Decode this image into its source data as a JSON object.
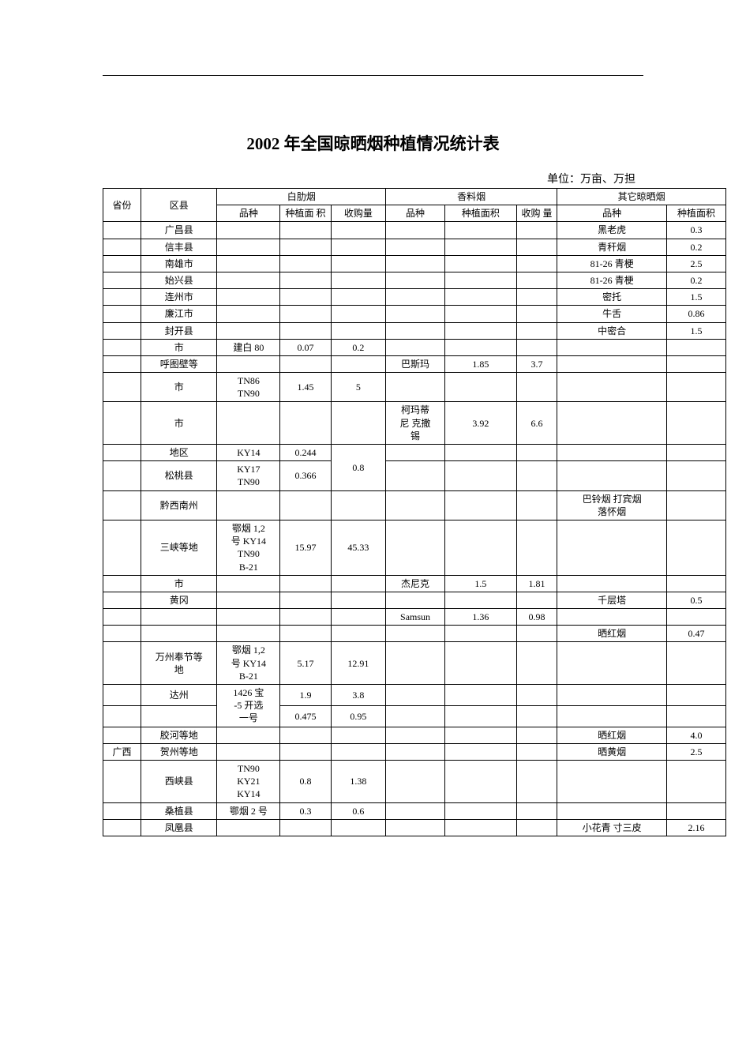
{
  "title": "2002 年全国晾晒烟种植情况统计表",
  "unit_label": "单位：万亩、万担",
  "headers": {
    "province": "省份",
    "county": "区县",
    "group1": "白肋烟",
    "group2": "香料烟",
    "group3": "其它晾晒烟",
    "variety": "品种",
    "area": "种植面积",
    "area_wrap": "种植面\n积",
    "purchase": "收购量",
    "purchase_wrap": "收购\n量"
  },
  "rows": [
    {
      "prov": "",
      "county": "广昌县",
      "v1": "",
      "a1": "",
      "p1": "",
      "v2": "",
      "a2": "",
      "p2": "",
      "v3": "黑老虎",
      "a3": "0.3"
    },
    {
      "prov": "",
      "county": "信丰县",
      "v1": "",
      "a1": "",
      "p1": "",
      "v2": "",
      "a2": "",
      "p2": "",
      "v3": "青秆烟",
      "a3": "0.2"
    },
    {
      "prov": "",
      "county": "南雄市",
      "v1": "",
      "a1": "",
      "p1": "",
      "v2": "",
      "a2": "",
      "p2": "",
      "v3": "81-26 青梗",
      "a3": "2.5"
    },
    {
      "prov": "",
      "county": "始兴县",
      "v1": "",
      "a1": "",
      "p1": "",
      "v2": "",
      "a2": "",
      "p2": "",
      "v3": "81-26 青梗",
      "a3": "0.2"
    },
    {
      "prov": "",
      "county": "连州市",
      "v1": "",
      "a1": "",
      "p1": "",
      "v2": "",
      "a2": "",
      "p2": "",
      "v3": "密托",
      "a3": "1.5"
    },
    {
      "prov": "",
      "county": "廉江市",
      "v1": "",
      "a1": "",
      "p1": "",
      "v2": "",
      "a2": "",
      "p2": "",
      "v3": "牛舌",
      "a3": "0.86"
    },
    {
      "prov": "",
      "county": "封开县",
      "v1": "",
      "a1": "",
      "p1": "",
      "v2": "",
      "a2": "",
      "p2": "",
      "v3": "中密合",
      "a3": "1.5"
    },
    {
      "prov": "",
      "county": "市",
      "v1": "建白 80",
      "a1": "0.07",
      "p1": "0.2",
      "v2": "",
      "a2": "",
      "p2": "",
      "v3": "",
      "a3": ""
    },
    {
      "prov": "",
      "county": "呼图壁等",
      "v1": "",
      "a1": "",
      "p1": "",
      "v2": "巴斯玛",
      "a2": "1.85",
      "p2": "3.7",
      "v3": "",
      "a3": ""
    },
    {
      "prov": "",
      "county": "市",
      "v1": "TN86\nTN90",
      "a1": "1.45",
      "p1": "5",
      "v2": "",
      "a2": "",
      "p2": "",
      "v3": "",
      "a3": ""
    },
    {
      "prov": "",
      "county": "市",
      "v1": "",
      "a1": "",
      "p1": "",
      "v2": "柯玛蒂\n尼 克撒\n锡",
      "a2": "3.92",
      "p2": "6.6",
      "v3": "",
      "a3": ""
    },
    {
      "prov": "",
      "county": "地区",
      "v1": "KY14",
      "a1": "0.244",
      "p1_span": true,
      "p1": "0.8",
      "v2": "",
      "a2": "",
      "p2": "",
      "v3": "",
      "a3": ""
    },
    {
      "prov": "",
      "county": "松桃县",
      "v1": "KY17\nTN90",
      "a1": "0.366",
      "p1_skip": true,
      "v2": "",
      "a2": "",
      "p2": "",
      "v3": "",
      "a3": ""
    },
    {
      "prov": "",
      "county": "黔西南州",
      "v1": "",
      "a1": "",
      "p1": "",
      "v2": "",
      "a2": "",
      "p2": "",
      "v3": "巴铃烟 打宾烟\n落怀烟",
      "a3": ""
    },
    {
      "prov": "",
      "county": "三峡等地",
      "v1": "鄂烟 1,2\n号 KY14\nTN90\nB-21",
      "a1": "15.97",
      "p1": "45.33",
      "v2": "",
      "a2": "",
      "p2": "",
      "v3": "",
      "a3": ""
    },
    {
      "prov": "",
      "county": "市",
      "v1": "",
      "a1": "",
      "p1": "",
      "v2": "杰尼克",
      "a2": "1.5",
      "p2": "1.81",
      "v3": "",
      "a3": ""
    },
    {
      "prov": "",
      "county": "黄冈",
      "v1": "",
      "a1": "",
      "p1": "",
      "v2": "",
      "a2": "",
      "p2": "",
      "v3": "千层塔",
      "a3": "0.5"
    },
    {
      "prov": "",
      "county": "",
      "v1": "",
      "a1": "",
      "p1": "",
      "v2": "Samsun",
      "a2": "1.36",
      "p2": "0.98",
      "v3": "",
      "a3": ""
    },
    {
      "prov": "",
      "county": "",
      "v1": "",
      "a1": "",
      "p1": "",
      "v2": "",
      "a2": "",
      "p2": "",
      "v3": "晒红烟",
      "a3": "0.47"
    },
    {
      "prov": "",
      "county": "万州奉节等\n地",
      "v1": "鄂烟 1,2\n号 KY14\nB-21",
      "a1": "5.17",
      "p1": "12.91",
      "v2": "",
      "a2": "",
      "p2": "",
      "v3": "",
      "a3": ""
    },
    {
      "prov": "",
      "county": "达州",
      "v1": "1426 宝",
      "v1_span": true,
      "a1": "1.9",
      "p1": "3.8",
      "v2": "",
      "a2": "",
      "p2": "",
      "v3": "",
      "a3": ""
    },
    {
      "prov": "",
      "county": "",
      "v1_cont": "-5 开选\n一号",
      "v1_skip": true,
      "a1": "0.475",
      "p1": "0.95",
      "v2": "",
      "a2": "",
      "p2": "",
      "v3": "",
      "a3": ""
    },
    {
      "prov": "",
      "county": "胶河等地",
      "v1": "",
      "a1": "",
      "p1": "",
      "v2": "",
      "a2": "",
      "p2": "",
      "v3": "晒红烟",
      "a3": "4.0"
    },
    {
      "prov": "广西",
      "county": "贺州等地",
      "v1": "",
      "a1": "",
      "p1": "",
      "v2": "",
      "a2": "",
      "p2": "",
      "v3": "晒黄烟",
      "a3": "2.5"
    },
    {
      "prov": "",
      "county": "西峡县",
      "v1": "TN90\nKY21\nKY14",
      "a1": "0.8",
      "p1": "1.38",
      "v2": "",
      "a2": "",
      "p2": "",
      "v3": "",
      "a3": ""
    },
    {
      "prov": "",
      "county": "桑植县",
      "v1": "鄂烟 2 号",
      "a1": "0.3",
      "p1": "0.6",
      "v2": "",
      "a2": "",
      "p2": "",
      "v3": "",
      "a3": ""
    },
    {
      "prov": "",
      "county": "凤凰县",
      "v1": "",
      "a1": "",
      "p1": "",
      "v2": "",
      "a2": "",
      "p2": "",
      "v3": "小花青 寸三皮",
      "a3": "2.16"
    }
  ],
  "style": {
    "page_bg": "#ffffff",
    "text_color": "#000000",
    "border_color": "#000000",
    "title_fontsize": 21,
    "body_fontsize": 12,
    "unit_fontsize": 14
  }
}
